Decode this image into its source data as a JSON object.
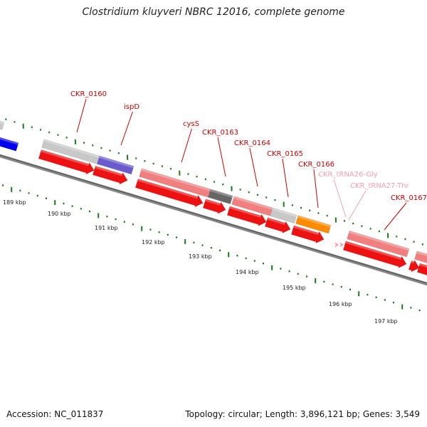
{
  "header": {
    "title": "Clostridium kluyveri NBRC 12016, complete genome"
  },
  "footer": {
    "accession": "Accession: NC_011837",
    "summary": "Topology: circular; Length: 3,896,121 bp; Genes: 3,549"
  },
  "colors": {
    "cds_forward": "#ee1111",
    "gene_pink": "#f08080",
    "gene_gray": "#c8c8c8",
    "gene_purple": "#6a5acd",
    "gene_dark": "#666666",
    "gene_orange": "#ff8c00",
    "cds_blue": "#0000ee",
    "label_red": "#cc0000",
    "label_pink": "#f4a0b0",
    "tick_green": "#1a7a1a",
    "backbone": "#888888"
  },
  "scale_labels": [
    "189 kbp",
    "190 kbp",
    "191 kbp",
    "192 kbp",
    "193 kbp",
    "194 kbp",
    "195 kbp",
    "196 kbp",
    "197 kbp"
  ],
  "gene_labels": [
    {
      "text": "CKR_0160",
      "kind": "cds"
    },
    {
      "text": "ispD",
      "kind": "cds"
    },
    {
      "text": "cysS",
      "kind": "cds"
    },
    {
      "text": "CKR_0163",
      "kind": "cds"
    },
    {
      "text": "CKR_0164",
      "kind": "cds"
    },
    {
      "text": "CKR_0165",
      "kind": "cds"
    },
    {
      "text": "CKR_0166",
      "kind": "cds"
    },
    {
      "text": "CKR_tRNA26-Gly",
      "kind": "trna"
    },
    {
      "text": "CKR_tRNA27-Thr",
      "kind": "trna"
    },
    {
      "text": "CKR_0167",
      "kind": "cds"
    }
  ]
}
